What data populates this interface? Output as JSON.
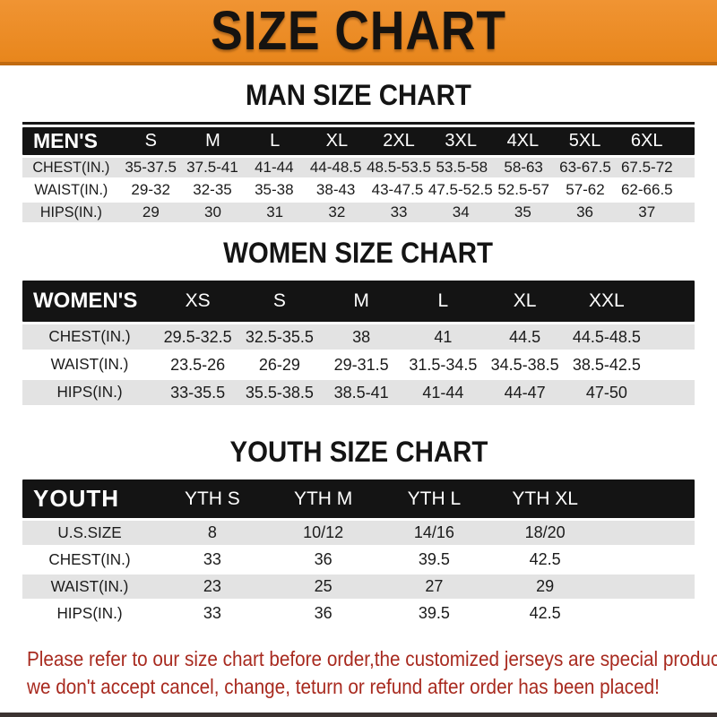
{
  "banner": {
    "title": "SIZE CHART",
    "bg_color": "#e8861c",
    "edge_color": "#c06a10"
  },
  "headings": {
    "man": "MAN SIZE CHART",
    "women": "WOMEN SIZE CHART",
    "youth": "YOUTH SIZE CHART"
  },
  "tables": {
    "man": {
      "header_label": "MEN'S",
      "columns": [
        "S",
        "M",
        "L",
        "XL",
        "2XL",
        "3XL",
        "4XL",
        "5XL",
        "6XL"
      ],
      "rows": [
        {
          "label": "CHEST(IN.)",
          "values": [
            "35-37.5",
            "37.5-41",
            "41-44",
            "44-48.5",
            "48.5-53.5",
            "53.5-58",
            "58-63",
            "63-67.5",
            "67.5-72"
          ]
        },
        {
          "label": "WAIST(IN.)",
          "values": [
            "29-32",
            "32-35",
            "35-38",
            "38-43",
            "43-47.5",
            "47.5-52.5",
            "52.5-57",
            "57-62",
            "62-66.5"
          ]
        },
        {
          "label": "HIPS(IN.)",
          "values": [
            "29",
            "30",
            "31",
            "32",
            "33",
            "34",
            "35",
            "36",
            "37"
          ]
        }
      ]
    },
    "women": {
      "header_label": "WOMEN'S",
      "columns": [
        "XS",
        "S",
        "M",
        "L",
        "XL",
        "XXL"
      ],
      "rows": [
        {
          "label": "CHEST(IN.)",
          "values": [
            "29.5-32.5",
            "32.5-35.5",
            "38",
            "41",
            "44.5",
            "44.5-48.5"
          ]
        },
        {
          "label": "WAIST(IN.)",
          "values": [
            "23.5-26",
            "26-29",
            "29-31.5",
            "31.5-34.5",
            "34.5-38.5",
            "38.5-42.5"
          ]
        },
        {
          "label": "HIPS(IN.)",
          "values": [
            "33-35.5",
            "35.5-38.5",
            "38.5-41",
            "41-44",
            "44-47",
            "47-50"
          ]
        }
      ]
    },
    "youth": {
      "header_label": "YOUTH",
      "columns": [
        "YTH S",
        "YTH M",
        "YTH L",
        "YTH XL"
      ],
      "rows": [
        {
          "label": "U.S.SIZE",
          "values": [
            "8",
            "10/12",
            "14/16",
            "18/20"
          ]
        },
        {
          "label": "CHEST(IN.)",
          "values": [
            "33",
            "36",
            "39.5",
            "42.5"
          ]
        },
        {
          "label": "WAIST(IN.)",
          "values": [
            "23",
            "25",
            "27",
            "29"
          ]
        },
        {
          "label": "HIPS(IN.)",
          "values": [
            "33",
            "36",
            "39.5",
            "42.5"
          ]
        }
      ]
    }
  },
  "footer": {
    "line1": "Please refer to our size chart before order,the customized jerseys are special products,",
    "line2": "we don't accept cancel, change, teturn or refund after order has been placed!",
    "text_color": "#a82a1f"
  }
}
